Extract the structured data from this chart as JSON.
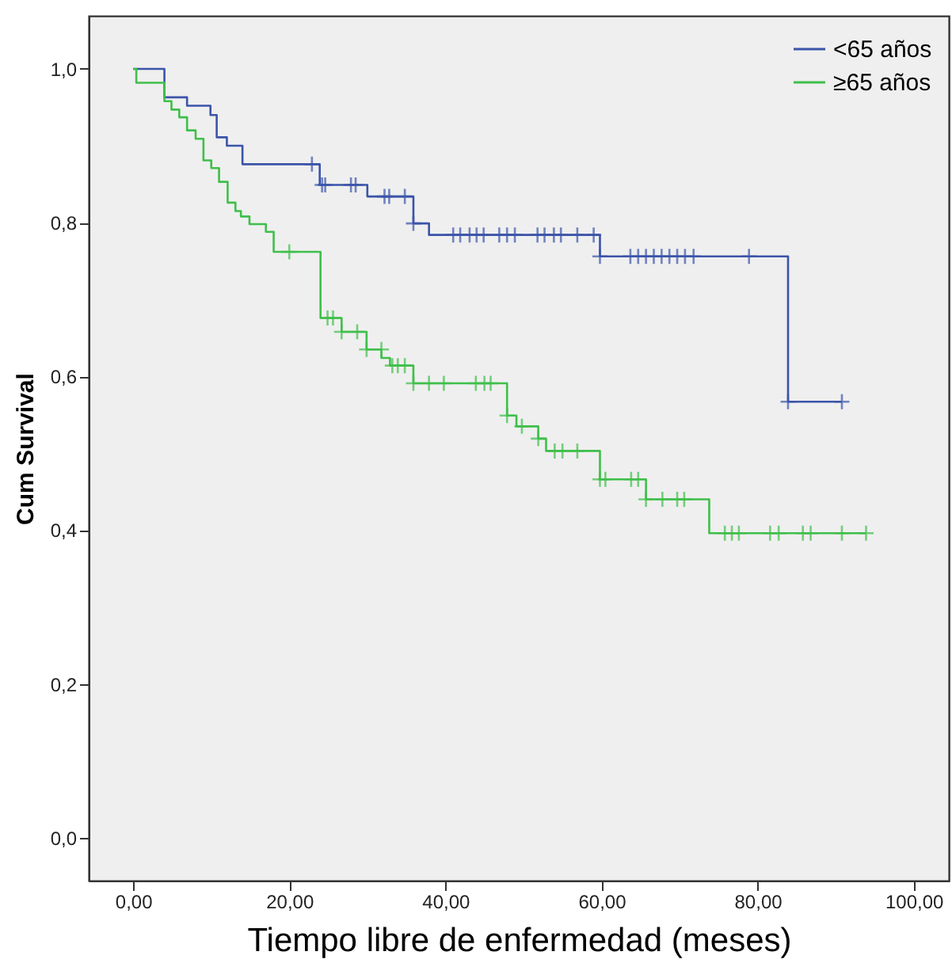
{
  "chart_data": {
    "type": "step",
    "xlabel": "Tiempo libre de enfermedad (meses)",
    "ylabel": "Cum Survival",
    "xlim": [
      -5.7,
      104.5
    ],
    "ylim": [
      -0.056,
      1.069
    ],
    "xticks": [
      {
        "value": 0,
        "label": "0,00"
      },
      {
        "value": 20,
        "label": "20,00"
      },
      {
        "value": 40,
        "label": "40,00"
      },
      {
        "value": 60,
        "label": "60,00"
      },
      {
        "value": 80,
        "label": "80,00"
      },
      {
        "value": 100,
        "label": "100,00"
      }
    ],
    "yticks": [
      {
        "value": 0,
        "label": "0,0"
      },
      {
        "value": 0.2,
        "label": "0,2"
      },
      {
        "value": 0.4,
        "label": "0,4"
      },
      {
        "value": 0.6,
        "label": "0,6"
      },
      {
        "value": 0.8,
        "label": "0,8"
      },
      {
        "value": 1.0,
        "label": "1,0"
      }
    ],
    "grid": false,
    "legend": "top right",
    "series": [
      {
        "name": "<65 años",
        "color": "#3b54a9",
        "marker": "none",
        "x": [
          0,
          4.0,
          6.9,
          9.9,
          10.7,
          12.0,
          14.0,
          23.9,
          30.0,
          35.9,
          37.9,
          59.8,
          83.9,
          90.8
        ],
        "values": [
          1.0,
          0.963,
          0.952,
          0.94,
          0.911,
          0.9,
          0.876,
          0.849,
          0.834,
          0.799,
          0.784,
          0.756,
          0.567,
          0.567
        ]
      },
      {
        "name": "≥65 años",
        "color": "#3fbf4a",
        "marker": "none",
        "x": [
          0,
          0.4,
          4.0,
          4.9,
          5.9,
          6.9,
          8.0,
          9.0,
          10.0,
          11.0,
          12.1,
          13.1,
          13.8,
          14.9,
          17.0,
          18.0,
          24.0,
          26.7,
          29.9,
          31.8,
          32.9,
          35.9,
          47.9,
          49.1,
          51.9,
          52.9,
          59.8,
          65.7,
          73.8,
          93.9
        ],
        "values": [
          1.0,
          0.982,
          0.958,
          0.947,
          0.937,
          0.92,
          0.909,
          0.881,
          0.871,
          0.853,
          0.826,
          0.815,
          0.808,
          0.798,
          0.788,
          0.762,
          0.676,
          0.658,
          0.635,
          0.624,
          0.614,
          0.591,
          0.549,
          0.535,
          0.519,
          0.503,
          0.466,
          0.44,
          0.396,
          0.396
        ]
      },
      {
        "color": "#3b54a9",
        "type": "scatter",
        "marker": "cross",
        "x": [
          22.9,
          24.2,
          24.6,
          27.9,
          28.5,
          32.2,
          32.8,
          34.8,
          35.9,
          41.0,
          41.9,
          43.1,
          44.0,
          44.9,
          46.9,
          47.9,
          48.9,
          51.8,
          52.7,
          53.9,
          54.8,
          56.9,
          59.0,
          59.8,
          63.7,
          64.7,
          65.7,
          66.7,
          67.7,
          68.7,
          69.7,
          70.7,
          71.8,
          78.9,
          83.9,
          90.8
        ],
        "values": [
          0.876,
          0.849,
          0.849,
          0.849,
          0.849,
          0.834,
          0.834,
          0.834,
          0.799,
          0.784,
          0.784,
          0.784,
          0.784,
          0.784,
          0.784,
          0.784,
          0.784,
          0.784,
          0.784,
          0.784,
          0.784,
          0.784,
          0.784,
          0.756,
          0.756,
          0.756,
          0.756,
          0.756,
          0.756,
          0.756,
          0.756,
          0.756,
          0.756,
          0.756,
          0.567,
          0.567
        ]
      },
      {
        "color": "#3fbf4a",
        "type": "scatter",
        "marker": "cross",
        "x": [
          20.0,
          24.9,
          25.6,
          26.7,
          28.7,
          29.9,
          31.8,
          33.2,
          33.9,
          34.8,
          35.9,
          37.9,
          39.8,
          43.9,
          45.0,
          45.8,
          47.9,
          49.8,
          51.9,
          54.0,
          55.0,
          56.9,
          59.8,
          60.5,
          63.8,
          64.7,
          65.7,
          67.8,
          69.7,
          70.6,
          75.8,
          76.7,
          77.6,
          81.6,
          82.7,
          85.8,
          86.8,
          90.8,
          93.9
        ],
        "values": [
          0.762,
          0.676,
          0.676,
          0.658,
          0.658,
          0.635,
          0.635,
          0.614,
          0.614,
          0.614,
          0.591,
          0.591,
          0.591,
          0.591,
          0.591,
          0.591,
          0.549,
          0.535,
          0.519,
          0.503,
          0.503,
          0.503,
          0.466,
          0.466,
          0.466,
          0.466,
          0.44,
          0.44,
          0.44,
          0.44,
          0.396,
          0.396,
          0.396,
          0.396,
          0.396,
          0.396,
          0.396,
          0.396,
          0.396
        ]
      }
    ]
  }
}
